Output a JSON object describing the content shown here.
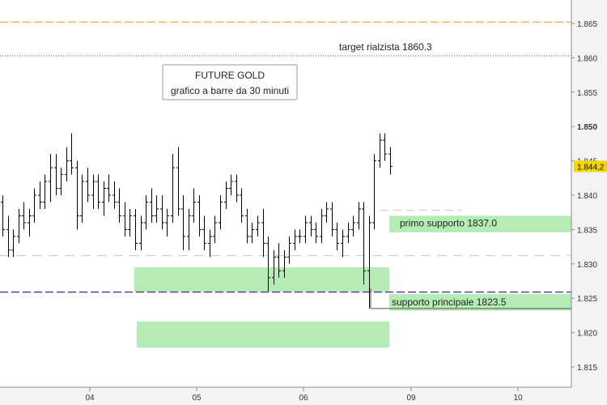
{
  "chart_data": {
    "type": "ohlc",
    "title": "FUTURE GOLD",
    "subtitle": "grafico a barre da 30 minuti",
    "xlabel": "",
    "ylabel": "",
    "x_ticks": [
      "04",
      "05",
      "06",
      "09",
      "10"
    ],
    "y_ticks": [
      "1.815",
      "1.820",
      "1.825",
      "1.830",
      "1.835",
      "1.840",
      "1.845",
      "1.850",
      "1.855",
      "1.860",
      "1.865"
    ],
    "ylim": [
      1812.5,
      1870.0
    ],
    "grid": false,
    "last_price": {
      "label": "1.844,2",
      "value": 1844.2,
      "color": "#f2d600"
    },
    "bars": [
      {
        "o": 1839,
        "h": 1840,
        "l": 1834,
        "c": 1835
      },
      {
        "o": 1835,
        "h": 1837,
        "l": 1831,
        "c": 1832
      },
      {
        "o": 1832,
        "h": 1835,
        "l": 1831,
        "c": 1834
      },
      {
        "o": 1834,
        "h": 1838,
        "l": 1833,
        "c": 1837
      },
      {
        "o": 1837,
        "h": 1839,
        "l": 1835,
        "c": 1836
      },
      {
        "o": 1836,
        "h": 1838,
        "l": 1834,
        "c": 1837
      },
      {
        "o": 1837,
        "h": 1841,
        "l": 1836,
        "c": 1840
      },
      {
        "o": 1840,
        "h": 1842,
        "l": 1838,
        "c": 1839
      },
      {
        "o": 1839,
        "h": 1843,
        "l": 1838,
        "c": 1842
      },
      {
        "o": 1842,
        "h": 1846,
        "l": 1839,
        "c": 1844
      },
      {
        "o": 1844,
        "h": 1846,
        "l": 1840,
        "c": 1841
      },
      {
        "o": 1841,
        "h": 1844,
        "l": 1840,
        "c": 1843
      },
      {
        "o": 1843,
        "h": 1847,
        "l": 1842,
        "c": 1845
      },
      {
        "o": 1845,
        "h": 1849,
        "l": 1843,
        "c": 1844
      },
      {
        "o": 1844,
        "h": 1845,
        "l": 1835,
        "c": 1837
      },
      {
        "o": 1837,
        "h": 1843,
        "l": 1836,
        "c": 1842
      },
      {
        "o": 1842,
        "h": 1844,
        "l": 1839,
        "c": 1840
      },
      {
        "o": 1840,
        "h": 1843,
        "l": 1838,
        "c": 1842
      },
      {
        "o": 1842,
        "h": 1843,
        "l": 1838,
        "c": 1839
      },
      {
        "o": 1839,
        "h": 1842,
        "l": 1837,
        "c": 1841
      },
      {
        "o": 1841,
        "h": 1843,
        "l": 1839,
        "c": 1840
      },
      {
        "o": 1840,
        "h": 1842,
        "l": 1838,
        "c": 1839
      },
      {
        "o": 1839,
        "h": 1841,
        "l": 1836,
        "c": 1837
      },
      {
        "o": 1837,
        "h": 1839,
        "l": 1834,
        "c": 1835
      },
      {
        "o": 1835,
        "h": 1838,
        "l": 1834,
        "c": 1837
      },
      {
        "o": 1837,
        "h": 1838,
        "l": 1832,
        "c": 1833
      },
      {
        "o": 1833,
        "h": 1837,
        "l": 1832,
        "c": 1836
      },
      {
        "o": 1836,
        "h": 1840,
        "l": 1835,
        "c": 1839
      },
      {
        "o": 1839,
        "h": 1841,
        "l": 1836,
        "c": 1837
      },
      {
        "o": 1837,
        "h": 1840,
        "l": 1836,
        "c": 1838
      },
      {
        "o": 1838,
        "h": 1840,
        "l": 1835,
        "c": 1836
      },
      {
        "o": 1836,
        "h": 1838,
        "l": 1834,
        "c": 1837
      },
      {
        "o": 1837,
        "h": 1846,
        "l": 1836,
        "c": 1844
      },
      {
        "o": 1844,
        "h": 1847,
        "l": 1837,
        "c": 1838
      },
      {
        "o": 1838,
        "h": 1840,
        "l": 1832,
        "c": 1834
      },
      {
        "o": 1834,
        "h": 1838,
        "l": 1832,
        "c": 1837
      },
      {
        "o": 1837,
        "h": 1841,
        "l": 1836,
        "c": 1839
      },
      {
        "o": 1839,
        "h": 1840,
        "l": 1834,
        "c": 1835
      },
      {
        "o": 1835,
        "h": 1837,
        "l": 1832,
        "c": 1833
      },
      {
        "o": 1833,
        "h": 1835,
        "l": 1831,
        "c": 1834
      },
      {
        "o": 1834,
        "h": 1837,
        "l": 1833,
        "c": 1836
      },
      {
        "o": 1836,
        "h": 1840,
        "l": 1835,
        "c": 1839
      },
      {
        "o": 1839,
        "h": 1842,
        "l": 1838,
        "c": 1841
      },
      {
        "o": 1841,
        "h": 1843,
        "l": 1840,
        "c": 1842
      },
      {
        "o": 1842,
        "h": 1843,
        "l": 1839,
        "c": 1840
      },
      {
        "o": 1840,
        "h": 1841,
        "l": 1836,
        "c": 1837
      },
      {
        "o": 1837,
        "h": 1838,
        "l": 1833,
        "c": 1834
      },
      {
        "o": 1834,
        "h": 1836,
        "l": 1833,
        "c": 1835
      },
      {
        "o": 1835,
        "h": 1837,
        "l": 1834,
        "c": 1836
      },
      {
        "o": 1836,
        "h": 1838,
        "l": 1831,
        "c": 1833
      },
      {
        "o": 1833,
        "h": 1834,
        "l": 1826,
        "c": 1828
      },
      {
        "o": 1828,
        "h": 1832,
        "l": 1827,
        "c": 1831
      },
      {
        "o": 1831,
        "h": 1833,
        "l": 1828,
        "c": 1829
      },
      {
        "o": 1829,
        "h": 1832,
        "l": 1828,
        "c": 1831
      },
      {
        "o": 1831,
        "h": 1834,
        "l": 1830,
        "c": 1833
      },
      {
        "o": 1833,
        "h": 1835,
        "l": 1832,
        "c": 1834
      },
      {
        "o": 1834,
        "h": 1835,
        "l": 1833,
        "c": 1834
      },
      {
        "o": 1834,
        "h": 1837,
        "l": 1833,
        "c": 1836
      },
      {
        "o": 1836,
        "h": 1837,
        "l": 1834,
        "c": 1835
      },
      {
        "o": 1835,
        "h": 1836,
        "l": 1833,
        "c": 1834
      },
      {
        "o": 1834,
        "h": 1838,
        "l": 1833,
        "c": 1837
      },
      {
        "o": 1837,
        "h": 1839,
        "l": 1836,
        "c": 1838
      },
      {
        "o": 1838,
        "h": 1839,
        "l": 1834,
        "c": 1835
      },
      {
        "o": 1835,
        "h": 1836,
        "l": 1832,
        "c": 1833
      },
      {
        "o": 1833,
        "h": 1835,
        "l": 1831,
        "c": 1834
      },
      {
        "o": 1834,
        "h": 1836,
        "l": 1833,
        "c": 1835
      },
      {
        "o": 1835,
        "h": 1837,
        "l": 1834,
        "c": 1836
      },
      {
        "o": 1836,
        "h": 1839,
        "l": 1835,
        "c": 1838
      },
      {
        "o": 1838,
        "h": 1839,
        "l": 1827,
        "c": 1829
      },
      {
        "o": 1829,
        "h": 1837,
        "l": 1823.5,
        "c": 1836
      },
      {
        "o": 1836,
        "h": 1846,
        "l": 1835,
        "c": 1845
      },
      {
        "o": 1845,
        "h": 1849,
        "l": 1844,
        "c": 1848
      },
      {
        "o": 1848,
        "h": 1849,
        "l": 1845,
        "c": 1846
      },
      {
        "o": 1846,
        "h": 1847,
        "l": 1843,
        "c": 1844.2
      }
    ],
    "levels": [
      {
        "name": "target rialzista 1860.3",
        "value": 1860.3,
        "style": "dotted",
        "color": "#555555"
      },
      {
        "value": 1865.2,
        "style": "dashed",
        "color": "#f0a030"
      },
      {
        "value": 1825.9,
        "style": "dashed",
        "color": "#5b2d8f"
      },
      {
        "value": 1837.8,
        "style": "dashed",
        "color": "#c8c8c8"
      },
      {
        "value": 1831.2,
        "style": "dashed",
        "color": "#c8c8c8"
      }
    ],
    "zones": [
      {
        "label": "primo supporto 1837.0",
        "y_from": 1834.6,
        "y_to": 1837.0
      },
      {
        "y_from": 1825.9,
        "y_to": 1829.5
      },
      {
        "label": "supporto principale 1823.5",
        "y_from": 1823.2,
        "y_to": 1825.6
      },
      {
        "y_from": 1817.8,
        "y_to": 1821.6
      }
    ],
    "colors": {
      "zone": "#b5ecb5",
      "axis_bg": "#f3f3f3",
      "bar": "#000000"
    }
  }
}
